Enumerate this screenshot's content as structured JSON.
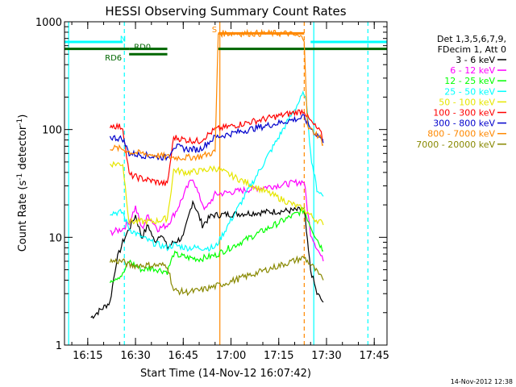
{
  "chart_data": {
    "type": "line",
    "title": "HESSI Observing Summary Count Rates",
    "xlabel": "Start Time (14-Nov-12 16:07:42)",
    "ylabel": "Count Rate (s",
    "ylabel_sup": "-1",
    "ylabel_mid": " detector",
    "ylabel_sup2": "-1",
    "ylabel_end": ")",
    "y_scale": "log",
    "ylim": [
      1,
      1000
    ],
    "xlim": [
      "16:07:42",
      "17:49:00"
    ],
    "x_ticks": [
      "16:15",
      "16:30",
      "16:45",
      "17:00",
      "17:15",
      "17:30",
      "17:45"
    ],
    "y_ticks": [
      "1",
      "10",
      "100",
      "1000"
    ],
    "timestamp": "14-Nov-2012 12:38",
    "legend_header": [
      "Det 1,3,5,6,7,9,",
      "FDecim 1, Att 0"
    ],
    "series": [
      {
        "name": "3 - 6 keV",
        "color": "#000000",
        "points": [
          [
            "16:16:00",
            1.8
          ],
          [
            "16:22:00",
            2.5
          ],
          [
            "16:24:00",
            6
          ],
          [
            "16:26:00",
            9
          ],
          [
            "16:28:00",
            12
          ],
          [
            "16:30:00",
            16
          ],
          [
            "16:32:00",
            10
          ],
          [
            "16:34:00",
            13
          ],
          [
            "16:36:00",
            9
          ],
          [
            "16:38:00",
            11
          ],
          [
            "16:40:00",
            8
          ],
          [
            "16:42:00",
            9
          ],
          [
            "16:45:00",
            10
          ],
          [
            "16:48:00",
            22
          ],
          [
            "16:51:00",
            13
          ],
          [
            "16:54:00",
            16
          ],
          [
            "17:23:00",
            18
          ],
          [
            "17:24:00",
            9
          ],
          [
            "17:25:00",
            5
          ],
          [
            "17:27:00",
            3
          ],
          [
            "17:29:00",
            2.5
          ]
        ]
      },
      {
        "name": "6 - 12 keV",
        "color": "#ff00ff",
        "points": [
          [
            "16:22:00",
            11
          ],
          [
            "16:26:00",
            12
          ],
          [
            "16:28:00",
            14
          ],
          [
            "16:30:00",
            19
          ],
          [
            "16:32:00",
            12
          ],
          [
            "16:34:00",
            16
          ],
          [
            "16:37:00",
            12
          ],
          [
            "16:40:00",
            13
          ],
          [
            "16:43:00",
            18
          ],
          [
            "16:46:00",
            28
          ],
          [
            "16:48:00",
            36
          ],
          [
            "16:50:00",
            24
          ],
          [
            "16:52:00",
            18
          ],
          [
            "16:55:00",
            25
          ],
          [
            "17:23:00",
            33
          ],
          [
            "17:24:00",
            18
          ],
          [
            "17:25:00",
            11
          ],
          [
            "17:27:00",
            8
          ],
          [
            "17:29:00",
            6
          ]
        ]
      },
      {
        "name": "12 - 25 keV",
        "color": "#00ff00",
        "points": [
          [
            "16:22:00",
            4
          ],
          [
            "16:26:00",
            4.5
          ],
          [
            "16:28:00",
            6
          ],
          [
            "16:32:00",
            5
          ],
          [
            "16:35:00",
            5.2
          ],
          [
            "16:40:00",
            4.8
          ],
          [
            "16:42:00",
            7
          ],
          [
            "16:46:00",
            6.5
          ],
          [
            "16:50:00",
            6.3
          ],
          [
            "16:55:00",
            6.8
          ],
          [
            "17:23:00",
            18
          ],
          [
            "17:24:00",
            15
          ],
          [
            "17:26:00",
            11
          ],
          [
            "17:28:00",
            8.5
          ],
          [
            "17:29:00",
            7.5
          ]
        ]
      },
      {
        "name": "25 - 50 keV",
        "color": "#00ffff",
        "points": [
          [
            "16:22:00",
            17
          ],
          [
            "16:26:00",
            17
          ],
          [
            "16:28:00",
            12
          ],
          [
            "16:32:00",
            10
          ],
          [
            "16:35:00",
            9
          ],
          [
            "16:40:00",
            8
          ],
          [
            "16:42:00",
            8.5
          ],
          [
            "16:46:00",
            8
          ],
          [
            "16:50:00",
            8
          ],
          [
            "16:55:00",
            8
          ],
          [
            "17:23:00",
            220
          ],
          [
            "17:24:00",
            150
          ],
          [
            "17:25:00",
            60
          ],
          [
            "17:26:00",
            40
          ],
          [
            "17:27:00",
            28
          ],
          [
            "17:29:00",
            24
          ]
        ]
      },
      {
        "name": "50 - 100 keV",
        "color": "#e6e600",
        "points": [
          [
            "16:22:00",
            48
          ],
          [
            "16:26:00",
            48
          ],
          [
            "16:28:00",
            14
          ],
          [
            "16:32:00",
            14
          ],
          [
            "16:36:00",
            14
          ],
          [
            "16:40:00",
            15
          ],
          [
            "16:42:00",
            42
          ],
          [
            "16:46:00",
            40
          ],
          [
            "16:50:00",
            41
          ],
          [
            "16:55:00",
            44
          ],
          [
            "17:23:00",
            18
          ],
          [
            "17:24:00",
            17
          ],
          [
            "17:26:00",
            15
          ],
          [
            "17:28:00",
            14
          ],
          [
            "17:29:00",
            13
          ]
        ]
      },
      {
        "name": "100 - 300 keV",
        "color": "#ff0000",
        "points": [
          [
            "16:22:00",
            110
          ],
          [
            "16:26:00",
            105
          ],
          [
            "16:28:00",
            38
          ],
          [
            "16:32:00",
            35
          ],
          [
            "16:36:00",
            33
          ],
          [
            "16:40:00",
            31
          ],
          [
            "16:42:00",
            85
          ],
          [
            "16:46:00",
            80
          ],
          [
            "16:50:00",
            78
          ],
          [
            "16:55:00",
            100
          ],
          [
            "17:23:00",
            150
          ],
          [
            "17:24:00",
            130
          ],
          [
            "17:26:00",
            110
          ],
          [
            "17:28:00",
            95
          ],
          [
            "17:29:00",
            80
          ]
        ]
      },
      {
        "name": "300 - 800 keV",
        "color": "#0000cc",
        "points": [
          [
            "16:22:00",
            85
          ],
          [
            "16:26:00",
            82
          ],
          [
            "16:28:00",
            60
          ],
          [
            "16:32:00",
            58
          ],
          [
            "16:36:00",
            56
          ],
          [
            "16:40:00",
            55
          ],
          [
            "16:42:00",
            70
          ],
          [
            "16:46:00",
            66
          ],
          [
            "16:50:00",
            65
          ],
          [
            "16:55:00",
            85
          ],
          [
            "17:23:00",
            130
          ],
          [
            "17:24:00",
            115
          ],
          [
            "17:26:00",
            95
          ],
          [
            "17:28:00",
            85
          ],
          [
            "17:29:00",
            75
          ]
        ]
      },
      {
        "name": "800 - 7000 keV",
        "color": "#ff8800",
        "points": [
          [
            "16:22:00",
            68
          ],
          [
            "16:26:00",
            66
          ],
          [
            "16:28:00",
            62
          ],
          [
            "16:32:00",
            60
          ],
          [
            "16:36:00",
            58
          ],
          [
            "16:40:00",
            56
          ],
          [
            "16:42:00",
            55
          ],
          [
            "16:46:00",
            55
          ],
          [
            "16:50:00",
            56
          ],
          [
            "16:55:00",
            62
          ],
          [
            "16:56:00",
            780
          ],
          [
            "17:18:00",
            780
          ],
          [
            "17:23:00",
            700
          ],
          [
            "17:24:00",
            105
          ],
          [
            "17:26:00",
            95
          ],
          [
            "17:28:00",
            85
          ],
          [
            "17:29:00",
            72
          ]
        ]
      },
      {
        "name": "7000 - 20000 keV",
        "color": "#888800",
        "points": [
          [
            "16:22:00",
            6
          ],
          [
            "16:26:00",
            6
          ],
          [
            "16:28:00",
            5.5
          ],
          [
            "16:32:00",
            5.5
          ],
          [
            "16:36:00",
            5.5
          ],
          [
            "16:40:00",
            5.5
          ],
          [
            "16:42:00",
            3.2
          ],
          [
            "16:46:00",
            3.1
          ],
          [
            "16:50:00",
            3.2
          ],
          [
            "16:55:00",
            3.5
          ],
          [
            "17:23:00",
            6.5
          ],
          [
            "17:24:00",
            6
          ],
          [
            "17:26:00",
            5.2
          ],
          [
            "17:28:00",
            4.3
          ],
          [
            "17:29:00",
            4
          ]
        ]
      }
    ],
    "annotations": [
      {
        "label": "N",
        "color": "#00ffff",
        "level": 650,
        "segments": [
          [
            "16:07:42",
            "16:26:00"
          ],
          [
            "17:25:00",
            "17:49:00"
          ]
        ]
      },
      {
        "label": "S",
        "color": "#ff8800",
        "level": 780,
        "segments": [
          [
            "16:56:00",
            "17:23:00"
          ]
        ]
      },
      {
        "label": "RD0",
        "color": "#006600",
        "level": 560,
        "segments": [
          [
            "16:07:42",
            "16:28:00"
          ],
          [
            "16:28:00",
            "16:40:00"
          ],
          [
            "16:56:00",
            "17:49:00"
          ]
        ]
      },
      {
        "label": "RD6",
        "color": "#006600",
        "level": 500,
        "segments": [
          [
            "16:28:00",
            "16:40:00"
          ]
        ]
      }
    ],
    "vlines": [
      {
        "t": "16:09:00",
        "color": "#00ffff",
        "style": "solid"
      },
      {
        "t": "16:26:30",
        "color": "#00ffff",
        "style": "dashed"
      },
      {
        "t": "16:56:30",
        "color": "#ff8800",
        "style": "solid"
      },
      {
        "t": "17:23:00",
        "color": "#ff8800",
        "style": "dashed"
      },
      {
        "t": "17:26:00",
        "color": "#00ffff",
        "style": "solid"
      },
      {
        "t": "17:43:00",
        "color": "#00ffff",
        "style": "dashed"
      }
    ]
  }
}
